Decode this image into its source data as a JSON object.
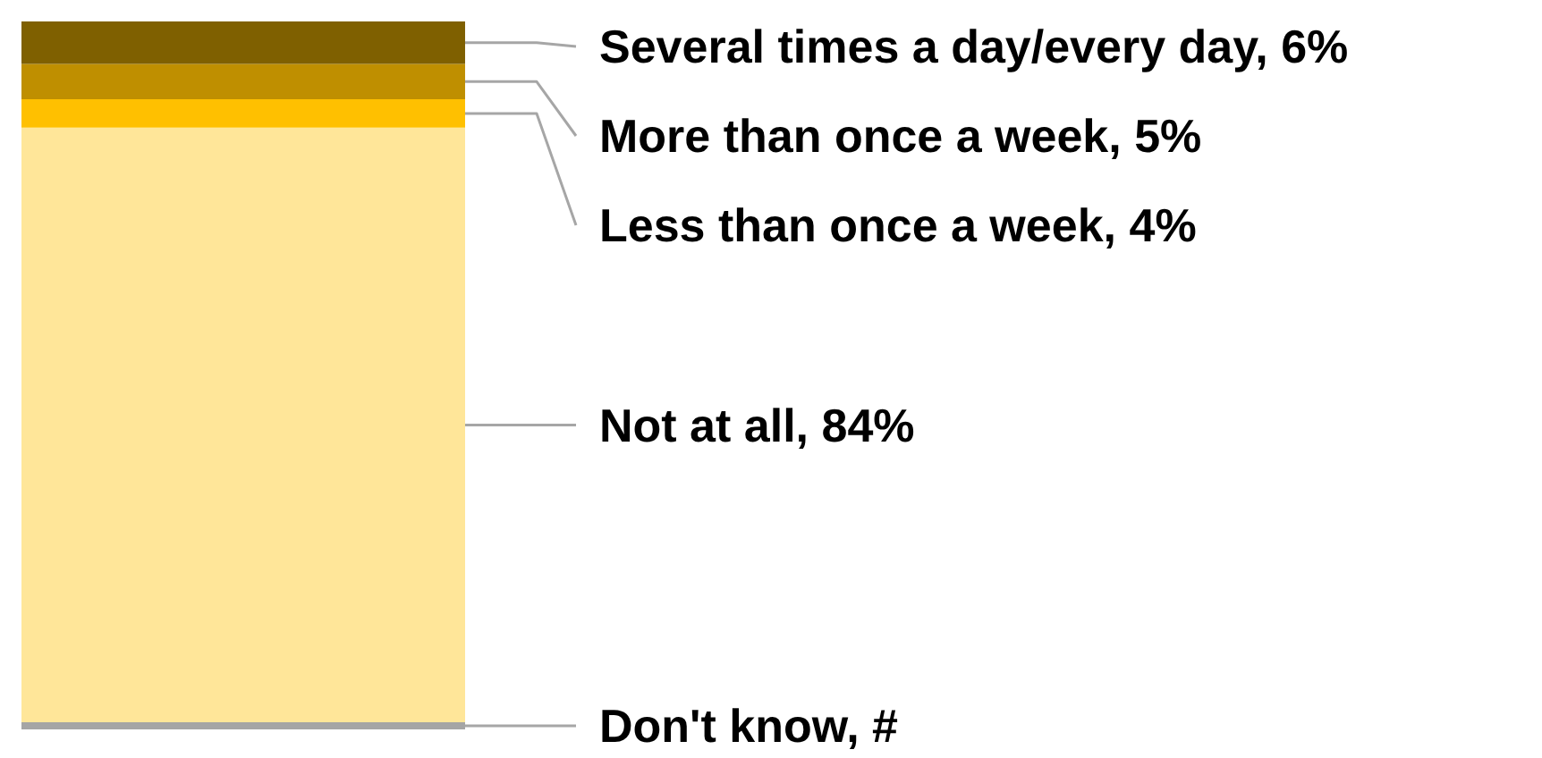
{
  "chart_data": {
    "type": "bar",
    "stacked": true,
    "categories": [
      null
    ],
    "series": [
      {
        "color": "#a5a5a5",
        "values": [
          1
        ],
        "value_labels": [
          "Don't know, #"
        ]
      },
      {
        "color": "#ffe699",
        "values": [
          84
        ],
        "value_labels": [
          "Not at all, 84%"
        ]
      },
      {
        "color": "#ffc000",
        "values": [
          4
        ],
        "value_labels": [
          "Less than once a week, 4%"
        ]
      },
      {
        "color": "#bf8f00",
        "values": [
          5
        ],
        "value_labels": [
          "More than once a week, 5%"
        ]
      },
      {
        "color": "#7f6000",
        "values": [
          6
        ],
        "value_labels": [
          "Several times a day/every day, 6%"
        ]
      }
    ]
  }
}
